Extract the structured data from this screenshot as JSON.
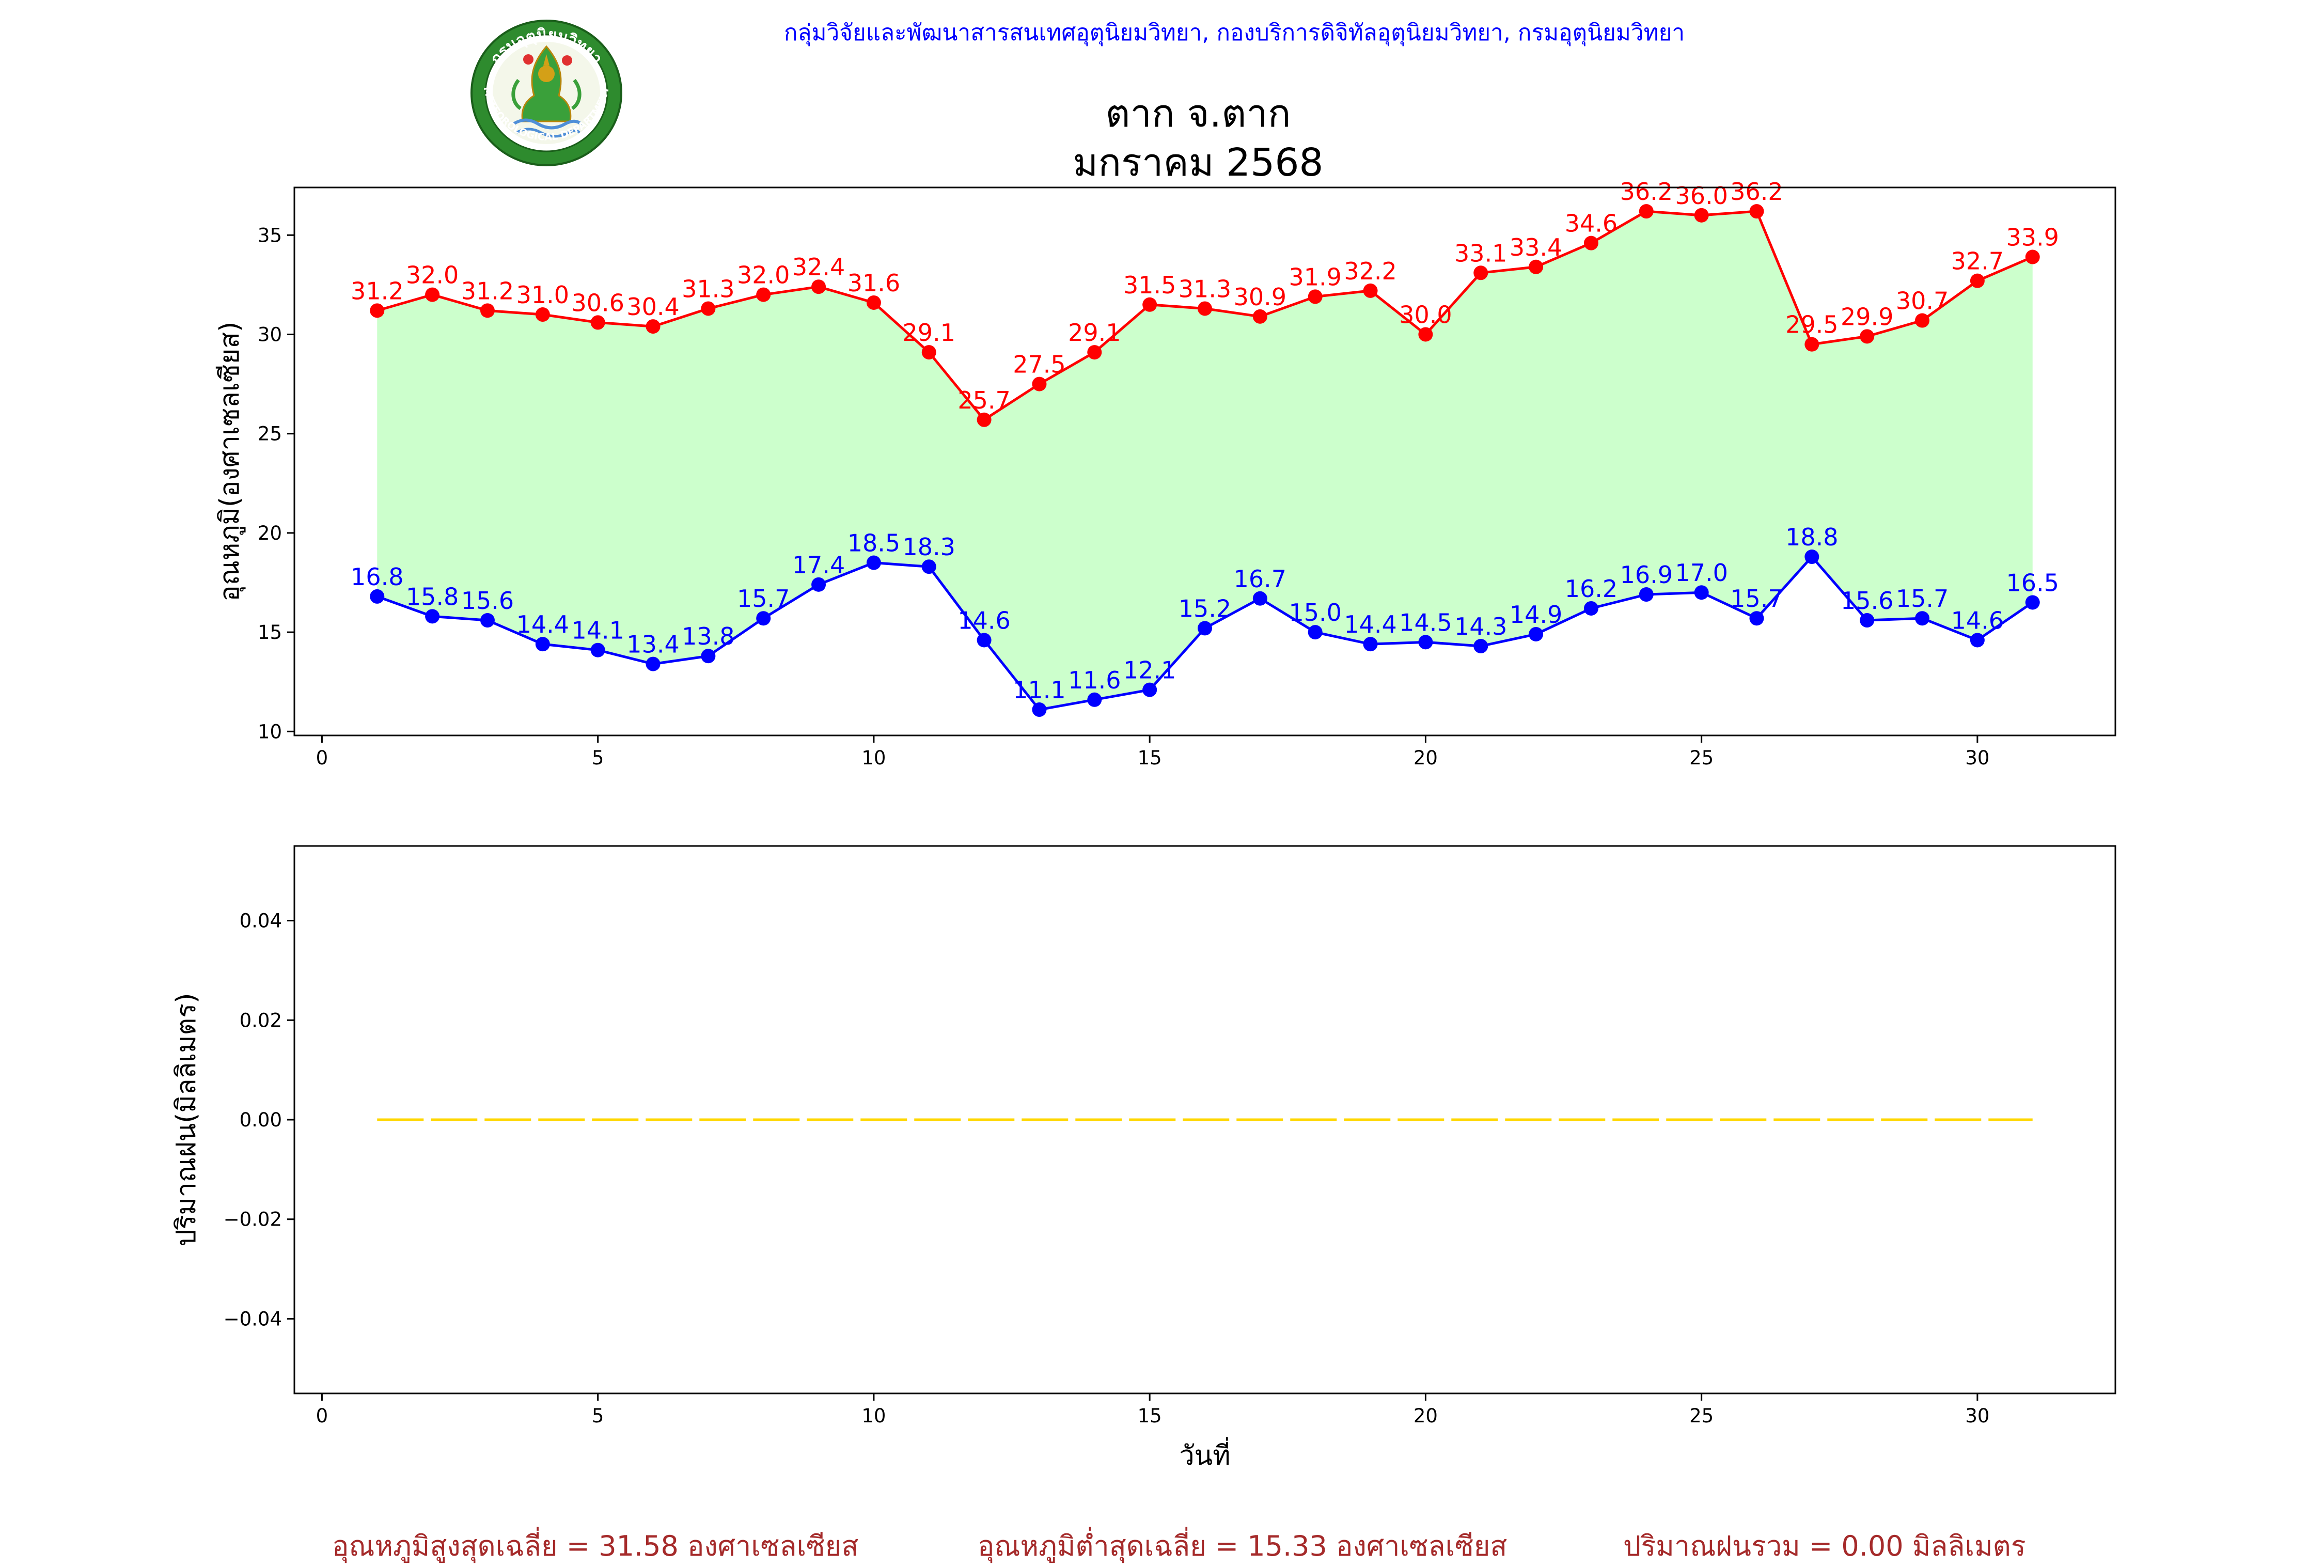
{
  "header": {
    "credit": "กลุ่มวิจัยและพัฒนาสารสนเทศอุตุนิยมวิทยา, กองบริการดิจิทัลอุตุนิยมวิทยา, กรมอุตุนิยมวิทยา",
    "title_line1": "ตาก จ.ตาก",
    "title_line2": "มกราคม 2568",
    "seal_top_text": "กรมอุตุนิยมวิทยา",
    "seal_bottom_text": "METEOROLOGICAL DEPARTMENT"
  },
  "summary": {
    "avg_max": "อุณหภูมิสูงสุดเฉลี่ย = 31.58 องศาเซลเซียส",
    "avg_min": "อุณหภูมิต่ำสุดเฉลี่ย = 15.33 องศาเซลเซียส",
    "total_rain": "ปริมาณฝนรวม = 0.00 มิลลิเมตร"
  },
  "colors": {
    "max_series": "#ff0000",
    "min_series": "#0000ff",
    "fill": "#ccffcc",
    "rain": "#ffd700",
    "credit": "#0000ff",
    "summary": "#a52a2a"
  },
  "chart_data": [
    {
      "type": "line",
      "ylabel": "อุณหภูมิ(องศาเซลเซียส)",
      "xlim": [
        -0.5,
        32.5
      ],
      "ylim": [
        9.8,
        37.4
      ],
      "xticks": [
        0,
        5,
        10,
        15,
        20,
        25,
        30
      ],
      "yticks": [
        10,
        15,
        20,
        25,
        30,
        35
      ],
      "x": [
        1,
        2,
        3,
        4,
        5,
        6,
        7,
        8,
        9,
        10,
        11,
        12,
        13,
        14,
        15,
        16,
        17,
        18,
        19,
        20,
        21,
        22,
        23,
        24,
        25,
        26,
        27,
        28,
        29,
        30,
        31
      ],
      "fill_between": true,
      "series": [
        {
          "key": "max",
          "values": [
            31.2,
            32.0,
            31.2,
            31.0,
            30.6,
            30.4,
            31.3,
            32.0,
            32.4,
            31.6,
            29.1,
            25.7,
            27.5,
            29.1,
            31.5,
            31.3,
            30.9,
            31.9,
            32.2,
            30.0,
            33.1,
            33.4,
            34.6,
            36.2,
            36.0,
            36.2,
            29.5,
            29.9,
            30.7,
            32.7,
            33.9
          ]
        },
        {
          "key": "min",
          "values": [
            16.8,
            15.8,
            15.6,
            14.4,
            14.1,
            13.4,
            13.8,
            15.7,
            17.4,
            18.5,
            18.3,
            14.6,
            11.1,
            11.6,
            12.1,
            15.2,
            16.7,
            15.0,
            14.4,
            14.5,
            14.3,
            14.9,
            16.2,
            16.9,
            17.0,
            15.7,
            18.8,
            15.6,
            15.7,
            14.6,
            16.5
          ]
        }
      ]
    },
    {
      "type": "line",
      "xlabel": "วันที่",
      "ylabel": "ปริมาณฝน(มิลลิเมตร)",
      "xlim": [
        -0.5,
        32.5
      ],
      "ylim": [
        -0.055,
        0.055
      ],
      "xticks": [
        0,
        5,
        10,
        15,
        20,
        25,
        30
      ],
      "yticks": [
        -0.04,
        -0.02,
        0.0,
        0.02,
        0.04
      ],
      "ytick_labels": [
        "−0.04",
        "−0.02",
        "0.00",
        "0.02",
        "0.04"
      ],
      "x": [
        1,
        2,
        3,
        4,
        5,
        6,
        7,
        8,
        9,
        10,
        11,
        12,
        13,
        14,
        15,
        16,
        17,
        18,
        19,
        20,
        21,
        22,
        23,
        24,
        25,
        26,
        27,
        28,
        29,
        30,
        31
      ],
      "series": [
        {
          "key": "rain",
          "style": "dashed",
          "values": [
            0,
            0,
            0,
            0,
            0,
            0,
            0,
            0,
            0,
            0,
            0,
            0,
            0,
            0,
            0,
            0,
            0,
            0,
            0,
            0,
            0,
            0,
            0,
            0,
            0,
            0,
            0,
            0,
            0,
            0,
            0
          ]
        }
      ]
    }
  ]
}
